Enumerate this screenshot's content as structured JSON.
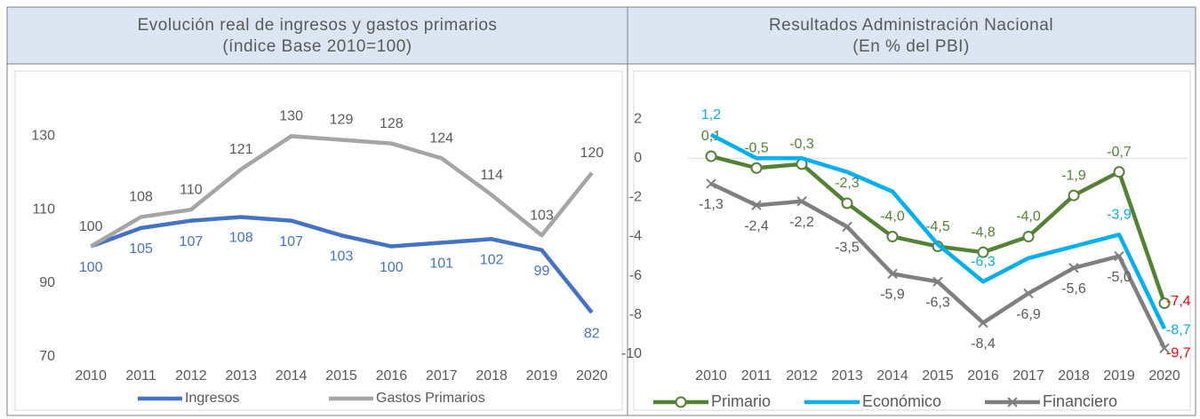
{
  "chart_data": [
    {
      "type": "line",
      "title": "Evolución real de ingresos y gastos primarios",
      "subtitle": "(índice Base 2010=100)",
      "categories": [
        "2010",
        "2011",
        "2012",
        "2013",
        "2014",
        "2015",
        "2016",
        "2017",
        "2018",
        "2019",
        "2020"
      ],
      "series": [
        {
          "name": "Ingresos",
          "color": "#4472c4",
          "label_color": "#4472c4",
          "label_position": "below",
          "values": [
            100,
            105,
            107,
            108,
            107,
            103,
            100,
            101,
            102,
            99,
            82
          ]
        },
        {
          "name": "Gastos Primarios",
          "color": "#a5a5a5",
          "label_color": "#595959",
          "label_position": "above",
          "values": [
            100,
            108,
            110,
            121,
            130,
            129,
            128,
            124,
            114,
            103,
            120
          ]
        }
      ],
      "ylim": [
        68,
        140
      ],
      "yticks": [
        70,
        90,
        110,
        130
      ],
      "grid": false,
      "legend": "bottom"
    },
    {
      "type": "line",
      "title": "Resultados Administración Nacional",
      "subtitle": "(En % del PBI)",
      "categories": [
        "2010",
        "2011",
        "2012",
        "2013",
        "2014",
        "2015",
        "2016",
        "2017",
        "2018",
        "2019",
        "2020"
      ],
      "series": [
        {
          "name": "Primario",
          "color": "#548235",
          "marker": "circle",
          "label_color": "#548235",
          "last_label_color": "#ff0000",
          "label_position": "above",
          "values": [
            0.1,
            -0.5,
            -0.3,
            -2.3,
            -4.0,
            -4.5,
            -4.8,
            -4.0,
            -1.9,
            -0.7,
            -7.4
          ],
          "value_labels": [
            "0,1",
            "-0,5",
            "-0,3",
            "-2,3",
            "-4,0",
            "-4,5",
            "-4,8",
            "-4,0",
            "-1,9",
            "-0,7",
            "-7,4"
          ]
        },
        {
          "name": "Económico",
          "color": "#00b0f0",
          "label_color": "#00b0f0",
          "label_position": "above",
          "values": [
            1.2,
            0.0,
            0.0,
            -0.7,
            -1.7,
            -4.4,
            -6.3,
            -5.1,
            -4.5,
            -3.9,
            -8.7
          ],
          "value_labels": [
            "1,2",
            null,
            null,
            null,
            null,
            null,
            "-6,3",
            null,
            null,
            "-3,9",
            "-8,7"
          ]
        },
        {
          "name": "Financiero",
          "color": "#7f7f7f",
          "marker": "x",
          "label_color": "#595959",
          "last_label_color": "#ff0000",
          "label_position": "below",
          "values": [
            -1.3,
            -2.4,
            -2.2,
            -3.5,
            -5.9,
            -6.3,
            -8.4,
            -6.9,
            -5.6,
            -5.0,
            -9.7
          ],
          "value_labels": [
            "-1,3",
            "-2,4",
            "-2,2",
            "-3,5",
            "-5,9",
            "-6,3",
            "-8,4",
            "-6,9",
            "-5,6",
            "-5,0",
            "-9,7"
          ]
        }
      ],
      "ylim": [
        -10.5,
        3
      ],
      "yticks": [
        2,
        0,
        -2,
        -4,
        -6,
        -8,
        -10
      ],
      "grid": false,
      "zero_line": true,
      "legend": "bottom"
    }
  ]
}
